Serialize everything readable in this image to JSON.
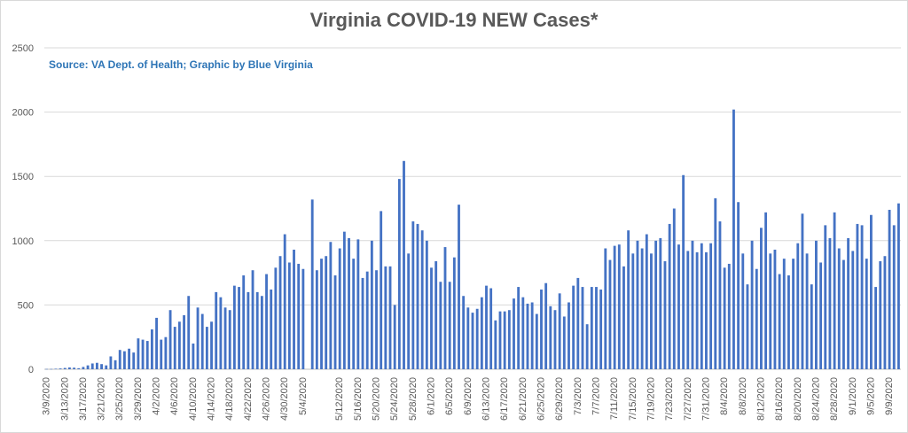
{
  "chart_data": {
    "type": "bar",
    "title": "Virginia COVID-19 NEW Cases*",
    "subtitle": "Source: VA Dept. of Health; Graphic by Blue Virginia",
    "ylim": [
      0,
      2500
    ],
    "yticks": [
      0,
      500,
      1000,
      1500,
      2000,
      2500
    ],
    "grid": true,
    "colors": {
      "bar": "#4472C4",
      "subtitle": "#2E75B6",
      "title": "#595959",
      "grid": "#d9d9d9"
    },
    "x_tick_labels": [
      "3/9/2020",
      "3/13/2020",
      "3/17/2020",
      "3/21/2020",
      "3/25/2020",
      "3/29/2020",
      "4/2/2020",
      "4/6/2020",
      "4/10/2020",
      "4/14/2020",
      "4/18/2020",
      "4/22/2020",
      "4/26/2020",
      "4/30/2020",
      "5/4/2020",
      "5/12/2020",
      "5/16/2020",
      "5/20/2020",
      "5/24/2020",
      "5/28/2020",
      "6/1/2020",
      "6/5/2020",
      "6/9/2020",
      "6/13/2020",
      "6/17/2020",
      "6/21/2020",
      "6/25/2020",
      "6/29/2020",
      "7/3/2020",
      "7/7/2020",
      "7/11/2020",
      "7/15/2020",
      "7/19/2020",
      "7/23/2020",
      "7/27/2020",
      "7/31/2020",
      "8/4/2020",
      "8/8/2020",
      "8/12/2020",
      "8/16/2020",
      "8/20/2020",
      "8/24/2020",
      "8/28/2020",
      "9/1/2020",
      "9/5/2020",
      "9/9/2020"
    ],
    "values": [
      2,
      2,
      4,
      6,
      10,
      14,
      12,
      8,
      18,
      30,
      45,
      50,
      40,
      30,
      100,
      70,
      150,
      140,
      160,
      130,
      240,
      230,
      220,
      310,
      400,
      230,
      250,
      460,
      330,
      370,
      420,
      570,
      200,
      480,
      430,
      330,
      370,
      600,
      560,
      480,
      460,
      650,
      640,
      730,
      600,
      770,
      600,
      570,
      740,
      620,
      790,
      880,
      1050,
      830,
      930,
      820,
      780,
      null,
      1320,
      770,
      860,
      880,
      990,
      730,
      940,
      1070,
      1020,
      860,
      1010,
      710,
      760,
      1000,
      770,
      1230,
      800,
      800,
      500,
      1480,
      1620,
      900,
      1150,
      1130,
      1080,
      1000,
      790,
      840,
      680,
      950,
      680,
      870,
      1280,
      570,
      480,
      440,
      470,
      560,
      650,
      630,
      380,
      450,
      450,
      460,
      550,
      640,
      560,
      510,
      520,
      430,
      620,
      670,
      490,
      460,
      590,
      410,
      520,
      650,
      710,
      640,
      350,
      640,
      640,
      620,
      940,
      850,
      960,
      970,
      800,
      1080,
      900,
      1000,
      940,
      1050,
      900,
      1000,
      1020,
      840,
      1130,
      1250,
      970,
      1510,
      920,
      1000,
      910,
      980,
      910,
      980,
      1330,
      1150,
      790,
      820,
      2020,
      1300,
      900,
      660,
      1000,
      780,
      1100,
      1220,
      900,
      930,
      740,
      860,
      730,
      860,
      980,
      1210,
      900,
      660,
      1000,
      830,
      1120,
      1020,
      1220,
      940,
      850,
      1020,
      920,
      1130,
      1120,
      860,
      1200,
      640,
      840,
      880,
      1240,
      1120,
      1290
    ]
  }
}
